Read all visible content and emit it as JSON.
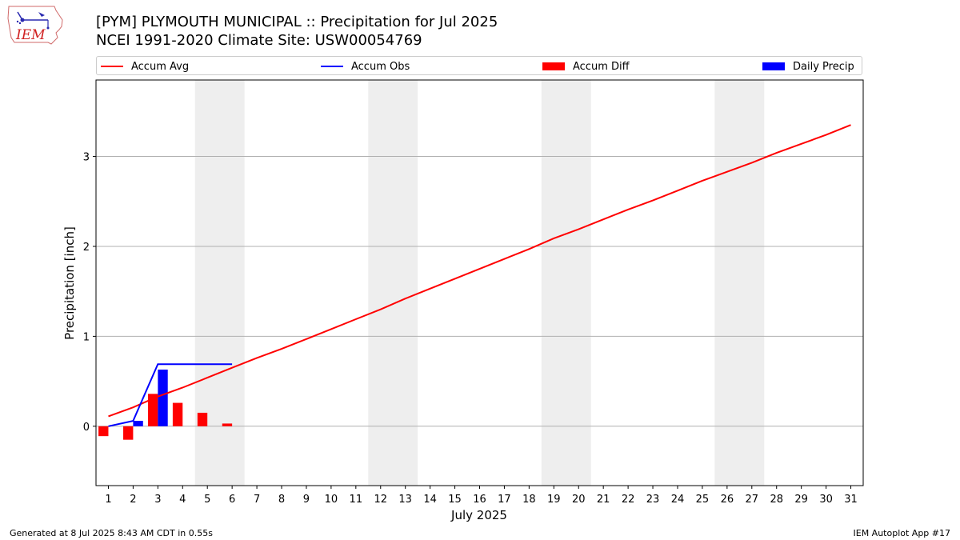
{
  "header": {
    "title_line1": "[PYM] PLYMOUTH MUNICIPAL :: Precipitation for Jul 2025",
    "title_line2": "NCEI 1991-2020 Climate Site: USW00054769",
    "logo_text": "IEM"
  },
  "footer": {
    "left": "Generated at 8 Jul 2025 8:43 AM CDT in 0.55s",
    "right": "IEM Autoplot App #17"
  },
  "legend": [
    {
      "label": "Accum Avg",
      "kind": "line",
      "color": "#ff0000"
    },
    {
      "label": "Accum Obs",
      "kind": "line",
      "color": "#0000ff"
    },
    {
      "label": "Accum Diff",
      "kind": "patch",
      "color": "#ff0000"
    },
    {
      "label": "Daily Precip",
      "kind": "patch",
      "color": "#0000ff"
    }
  ],
  "chart_data": {
    "type": "line",
    "xlabel": "July 2025",
    "ylabel": "Precipitation [inch]",
    "xlim": [
      0.5,
      31.5
    ],
    "ylim": [
      -0.66,
      3.85
    ],
    "x_ticks": [
      1,
      2,
      3,
      4,
      5,
      6,
      7,
      8,
      9,
      10,
      11,
      12,
      13,
      14,
      15,
      16,
      17,
      18,
      19,
      20,
      21,
      22,
      23,
      24,
      25,
      26,
      27,
      28,
      29,
      30,
      31
    ],
    "y_ticks": [
      0,
      1,
      2,
      3
    ],
    "grid": "horizontal",
    "legend_position": "top",
    "weekend_shading": [
      [
        4.5,
        6.5
      ],
      [
        11.5,
        13.5
      ],
      [
        18.5,
        20.5
      ],
      [
        25.5,
        27.5
      ]
    ],
    "shading_color": "#eeeeee",
    "series": [
      {
        "name": "Accum Avg",
        "type": "line",
        "color": "#ff0000",
        "x": [
          1,
          2,
          3,
          4,
          5,
          6,
          7,
          8,
          9,
          10,
          11,
          12,
          13,
          14,
          15,
          16,
          17,
          18,
          19,
          20,
          21,
          22,
          23,
          24,
          25,
          26,
          27,
          28,
          29,
          30,
          31
        ],
        "values": [
          0.11,
          0.21,
          0.33,
          0.43,
          0.54,
          0.65,
          0.76,
          0.86,
          0.97,
          1.08,
          1.19,
          1.3,
          1.42,
          1.53,
          1.64,
          1.75,
          1.86,
          1.97,
          2.09,
          2.19,
          2.3,
          2.41,
          2.51,
          2.62,
          2.73,
          2.83,
          2.93,
          3.04,
          3.14,
          3.24,
          3.35
        ]
      },
      {
        "name": "Accum Obs",
        "type": "line",
        "color": "#0000ff",
        "x": [
          1,
          2,
          3,
          4,
          5,
          6
        ],
        "values": [
          0.0,
          0.06,
          0.69,
          0.69,
          0.69,
          0.69
        ]
      },
      {
        "name": "Accum Diff",
        "type": "bar",
        "color": "#ff0000",
        "x": [
          1,
          2,
          3,
          4,
          5,
          6
        ],
        "values": [
          -0.11,
          -0.15,
          0.36,
          0.26,
          0.15,
          0.03
        ]
      },
      {
        "name": "Daily Precip",
        "type": "bar",
        "color": "#0000ff",
        "x": [
          1,
          2,
          3,
          4,
          5,
          6
        ],
        "values": [
          0.0,
          0.06,
          0.63,
          0.0,
          0.0,
          0.0
        ]
      }
    ]
  }
}
